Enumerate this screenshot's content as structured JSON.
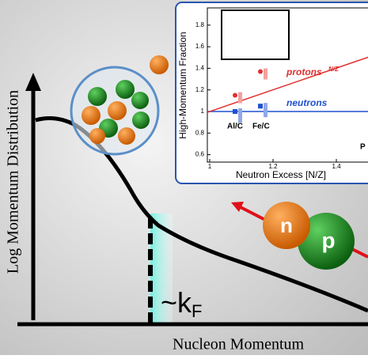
{
  "main": {
    "y_label": "Log Momentum Distribution",
    "x_label": "Nucleon Momentum",
    "kf_label": "~k",
    "kf_sub": "F",
    "neutron": "n",
    "proton": "p"
  },
  "inset": {
    "y_label": "High-Momentum Fraction",
    "x_label": "Neutron Excess [N/Z]",
    "yticks": [
      0.6,
      0.8,
      1,
      1.2,
      1.4,
      1.6,
      1.8
    ],
    "xticks": [
      1,
      1.2,
      1.4
    ],
    "protons_label": "protons",
    "nz_label": "N/Z",
    "neutrons_label": "neutrons",
    "targets": [
      {
        "label": "Al/C",
        "x": 1.08,
        "proton": 1.15,
        "neutron": 1.0
      },
      {
        "label": "Fe/C",
        "x": 1.16,
        "proton": 1.37,
        "neutron": 1.05
      },
      {
        "label": "P"
      }
    ]
  }
}
